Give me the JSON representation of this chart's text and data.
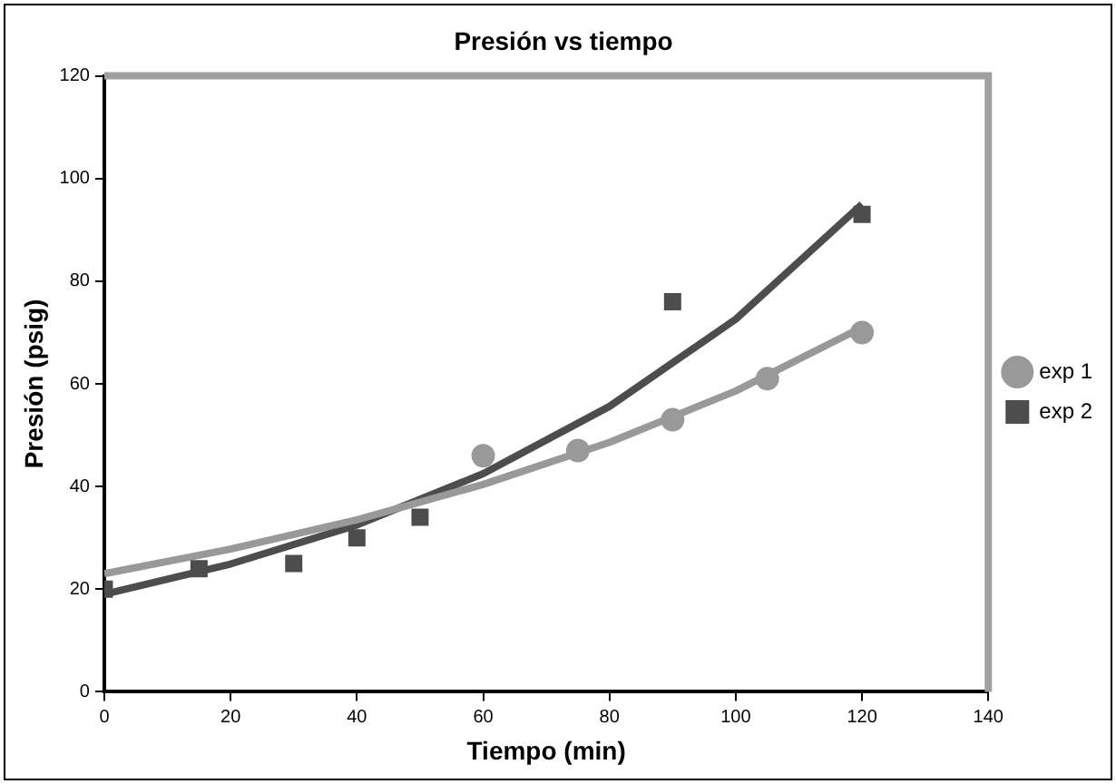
{
  "chart_data": {
    "type": "scatter",
    "title": "Presión vs tiempo",
    "xlabel": "Tiempo (min)",
    "ylabel": "Presión (psig)",
    "xlim": [
      0,
      140
    ],
    "xticks": [
      0,
      20,
      40,
      60,
      80,
      100,
      120,
      140
    ],
    "ylim": [
      0,
      120
    ],
    "yticks": [
      0,
      20,
      40,
      60,
      80,
      100,
      120
    ],
    "grid": false,
    "legend": "right",
    "series": [
      {
        "name": "exp 1",
        "color": "#999999",
        "marker": "circle",
        "x": [
          60,
          75,
          90,
          105,
          120
        ],
        "values": [
          46,
          47,
          53,
          61,
          70
        ]
      },
      {
        "name": "exp 2",
        "color": "#4d4d4d",
        "marker": "square",
        "x": [
          0,
          15,
          30,
          40,
          50,
          90,
          120
        ],
        "values": [
          20,
          24,
          25,
          30,
          34,
          76,
          93
        ]
      },
      {
        "type": "line",
        "color": "#999999",
        "marker": "none",
        "line_style": "solid",
        "x": [
          0,
          20,
          40,
          60,
          80,
          100,
          120
        ],
        "values": [
          23,
          27.8,
          33.5,
          40.4,
          48.6,
          58.6,
          71
        ]
      },
      {
        "type": "line",
        "color": "#4d4d4d",
        "marker": "none",
        "line_style": "solid",
        "x": [
          0,
          20,
          40,
          60,
          80,
          100,
          120
        ],
        "values": [
          19,
          24.9,
          32.5,
          42.5,
          55.6,
          72.6,
          95
        ]
      }
    ]
  }
}
